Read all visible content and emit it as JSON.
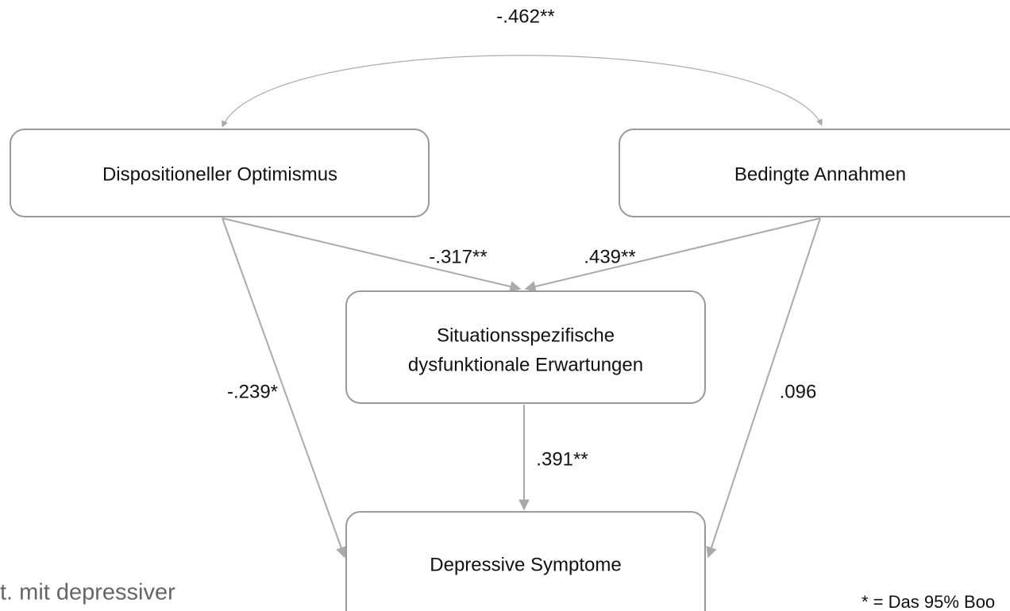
{
  "nodes": [
    {
      "label": "Dispositioneller Optimismus"
    },
    {
      "label": "Bedingte Annahmen"
    },
    {
      "label": [
        "Situationsspezifische",
        "dysfunktionale Erwartungen"
      ]
    },
    {
      "label": "Depressive Symptome"
    }
  ],
  "edges": [
    {
      "label": "-.462**"
    },
    {
      "label": "-.317**"
    },
    {
      "label": ".439**"
    },
    {
      "label": "-.239*"
    },
    {
      "label": ".096"
    },
    {
      "label": ".391**"
    }
  ],
  "side_text": {
    "left": "t. mit depressiver",
    "right": "* = Das 95% Boo"
  }
}
